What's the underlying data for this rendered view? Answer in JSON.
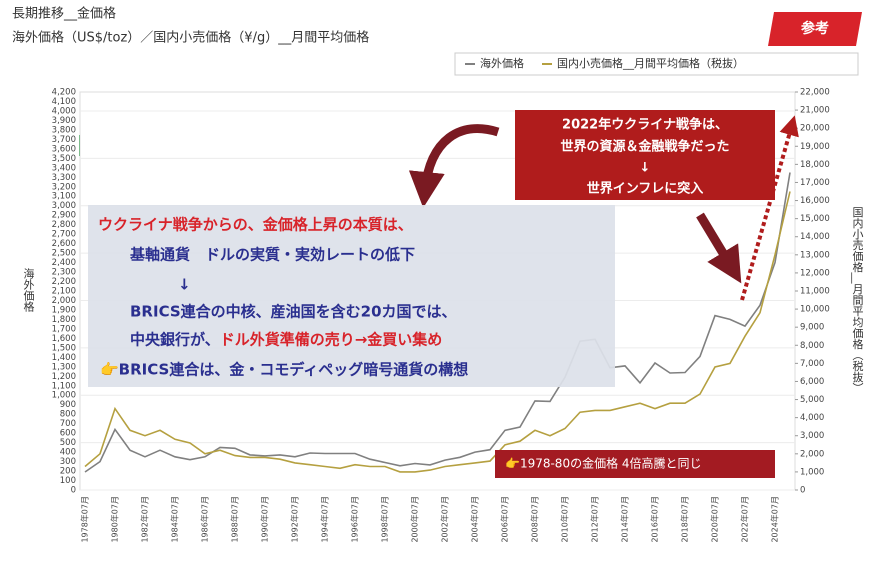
{
  "header": {
    "badge": "参考"
  },
  "chart_data": {
    "type": "line",
    "title": "長期推移__金価格",
    "subtitle": "海外価格（US$/toz）／国内小売価格（¥/g）__月間平均価格",
    "y_label": "海外価格",
    "y2_label": "国内小売価格__月間平均価格（税抜）",
    "categories": [
      "1978年07月",
      null,
      "1980年07月",
      null,
      "1982年07月",
      null,
      "1984年07月",
      null,
      "1986年07月",
      null,
      "1988年07月",
      null,
      "1990年07月",
      null,
      "1992年07月",
      null,
      "1994年07月",
      null,
      "1996年07月",
      null,
      "1998年07月",
      null,
      "2000年07月",
      null,
      "2002年07月",
      null,
      "2004年07月",
      null,
      "2006年07月",
      null,
      "2008年07月",
      null,
      "2010年07月",
      null,
      "2012年07月",
      null,
      "2014年07月",
      null,
      "2016年07月",
      null,
      "2018年07月",
      null,
      "2020年07月",
      null,
      "2022年07月",
      null,
      "2024年07月",
      null
    ],
    "series": [
      {
        "name": "海外価格",
        "color": "#808080",
        "axis": "y",
        "values": [
          190,
          300,
          640,
          420,
          350,
          420,
          350,
          320,
          350,
          450,
          440,
          370,
          360,
          370,
          350,
          390,
          385,
          385,
          385,
          325,
          290,
          255,
          280,
          265,
          315,
          345,
          400,
          425,
          630,
          665,
          940,
          935,
          1190,
          1570,
          1590,
          1290,
          1310,
          1130,
          1340,
          1235,
          1240,
          1410,
          1840,
          1800,
          1730,
          1950,
          2400,
          3350
        ]
      },
      {
        "name": "国内小売価格__月間平均価格（税抜）",
        "color": "#b5a040",
        "axis": "y2",
        "values": [
          1300,
          2000,
          4500,
          3300,
          3000,
          3300,
          2800,
          2600,
          2000,
          2200,
          1900,
          1800,
          1800,
          1700,
          1500,
          1400,
          1300,
          1200,
          1400,
          1300,
          1300,
          1000,
          1000,
          1100,
          1300,
          1400,
          1500,
          1600,
          2500,
          2700,
          3300,
          3000,
          3400,
          4300,
          4400,
          4400,
          4600,
          4800,
          4500,
          4800,
          4800,
          5300,
          6800,
          7000,
          8500,
          9800,
          13000,
          16500
        ]
      }
    ],
    "ylim": [
      0,
      4200
    ],
    "yticks": [
      0,
      100,
      200,
      300,
      400,
      500,
      600,
      700,
      800,
      900,
      {
        "value": 1000,
        "label": "1,000"
      },
      {
        "value": 1100,
        "label": "1,100"
      },
      {
        "value": 1200,
        "label": "1,200"
      },
      {
        "value": 1300,
        "label": "1,300"
      },
      {
        "value": 1400,
        "label": "1,400"
      },
      {
        "value": 1500,
        "label": "1,500"
      },
      {
        "value": 1600,
        "label": "1,600"
      },
      {
        "value": 1700,
        "label": "1,700"
      },
      {
        "value": 1800,
        "label": "1,800"
      },
      {
        "value": 1900,
        "label": "1,900"
      },
      {
        "value": 2000,
        "label": "2,000"
      },
      {
        "value": 2100,
        "label": "2,100"
      },
      {
        "value": 2200,
        "label": "2,200"
      },
      {
        "value": 2300,
        "label": "2,300"
      },
      {
        "value": 2400,
        "label": "2,400"
      },
      {
        "value": 2500,
        "label": "2,500"
      },
      {
        "value": 2600,
        "label": "2,600"
      },
      {
        "value": 2700,
        "label": "2,700"
      },
      {
        "value": 2800,
        "label": "2,800"
      },
      {
        "value": 2900,
        "label": "2,900"
      },
      {
        "value": 3000,
        "label": "3,000"
      },
      {
        "value": 3100,
        "label": "3,100"
      },
      {
        "value": 3200,
        "label": "3,200"
      },
      {
        "value": 3300,
        "label": "3,300"
      },
      {
        "value": 3400,
        "label": "3,400"
      },
      {
        "value": 3500,
        "label": "3,500"
      },
      {
        "value": 3600,
        "label": "3,600"
      },
      {
        "value": 3700,
        "label": "3,700"
      },
      {
        "value": 3800,
        "label": "3,800"
      },
      {
        "value": 3900,
        "label": "3,900"
      },
      {
        "value": 4000,
        "label": "4,000"
      },
      {
        "value": 4100,
        "label": "4,100"
      },
      {
        "value": 4200,
        "label": "4,200"
      }
    ],
    "y2lim": [
      0,
      22000
    ],
    "y2ticks": [
      0,
      {
        "value": 1000,
        "label": "1,000"
      },
      {
        "value": 2000,
        "label": "2,000"
      },
      {
        "value": 3000,
        "label": "3,000"
      },
      {
        "value": 4000,
        "label": "4,000"
      },
      {
        "value": 5000,
        "label": "5,000"
      },
      {
        "value": 6000,
        "label": "6,000"
      },
      {
        "value": 7000,
        "label": "7,000"
      },
      {
        "value": 8000,
        "label": "8,000"
      },
      {
        "value": 9000,
        "label": "9,000"
      },
      {
        "value": 10000,
        "label": "10,000"
      },
      {
        "value": 11000,
        "label": "11,000"
      },
      {
        "value": 12000,
        "label": "12,000"
      },
      {
        "value": 13000,
        "label": "13,000"
      },
      {
        "value": 14000,
        "label": "14,000"
      },
      {
        "value": 15000,
        "label": "15,000"
      },
      {
        "value": 16000,
        "label": "16,000"
      },
      {
        "value": 17000,
        "label": "17,000"
      },
      {
        "value": 18000,
        "label": "18,000"
      },
      {
        "value": 19000,
        "label": "19,000"
      },
      {
        "value": 20000,
        "label": "20,000"
      },
      {
        "value": 21000,
        "label": "21,000"
      },
      {
        "value": 22000,
        "label": "22,000"
      }
    ],
    "grid": true,
    "legend": "top-right",
    "annotations": [
      "ウクライナ戦争からの、金価格上昇の本質は、",
      "基軸通貨　ドルの実質・実効レートの低下",
      "↓",
      "BRICS連合の中核、産油国を含む20カ国では、",
      "中央銀行が、",
      "ドル外貨準備の売り→金買い集め",
      "👉BRICS連合は、金・コモディペッグ暗号通貨の構想",
      "2022年ウクライナ戦争は、",
      "世界の資源＆金融戦争だった",
      "↓",
      "世界インフレに突入",
      "👉1978-80の金価格 4倍高騰と同じ"
    ]
  }
}
